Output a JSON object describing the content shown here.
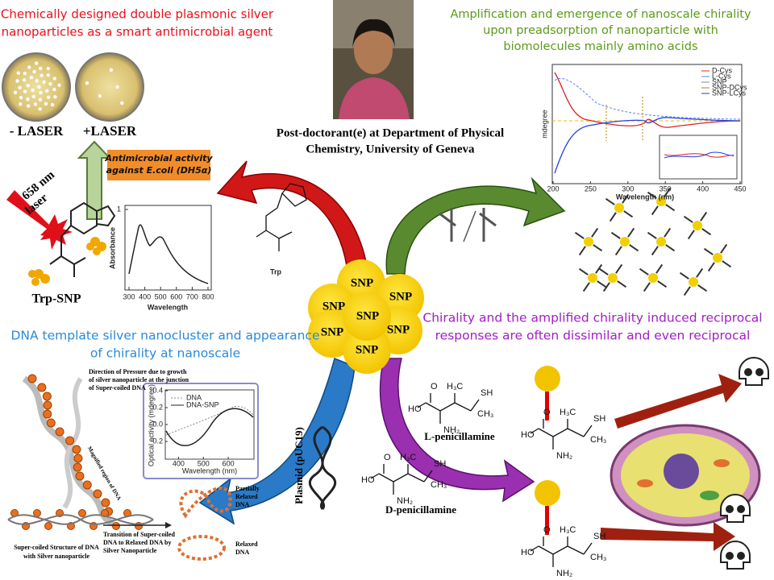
{
  "photo_caption": [
    "Post-doctorant(e) at Department of Physical",
    "Chemistry, University of Geneva"
  ],
  "antimicrobial": {
    "title": [
      "Chemically designed double plasmonic silver",
      "nanoparticles as a smart antimicrobial agent"
    ],
    "dishes": [
      "- LASER",
      "+LASER"
    ],
    "activity": [
      "Antimicrobial activity",
      "against E.coli (DH5α)"
    ],
    "laser": [
      "658 nm",
      "laser"
    ],
    "compound": "Trp-SNP",
    "plot": {
      "ylabel": "Absorbance",
      "xlabel": "Wavelength",
      "xticks": [
        300,
        400,
        500,
        600,
        700,
        800
      ],
      "yticks": [
        1
      ]
    }
  },
  "tryptophan": "Trp",
  "chirality": {
    "title": [
      "Amplification and emergence of nanoscale chirality",
      "upon preadsorption of nanoparticle with",
      "biomolecules mainly amino acids"
    ],
    "plot": {
      "ylabel": "mdegree",
      "xlabel": "Wavelength (nm)",
      "xticks": [
        200,
        250,
        300,
        350,
        400,
        450
      ],
      "legend": [
        "D-Cys",
        "L-Cys",
        "SNP",
        "SNP-DCys",
        "SNP-LCys"
      ]
    }
  },
  "core": {
    "labels": [
      "SNP",
      "SNP",
      "SNP",
      "SNP",
      "SNP",
      "SNP",
      "SNP"
    ]
  },
  "reciprocal": {
    "title": [
      "Chirality and the amplified chirality induced reciprocal",
      "responses are often dissimilar and even reciprocal"
    ],
    "l_name": "L-penicillamine",
    "d_name": "D-penicillamine",
    "molecule_labels": [
      "O",
      "HO",
      "NH₂",
      "H₃C",
      "CH₃",
      "SH"
    ]
  },
  "dna": {
    "title": [
      "DNA template silver nanocluster and appearance",
      "of chirality at nanoscale"
    ],
    "pressure_note": [
      "Direction of Pressure due to growth",
      "of silver nanoparticle at the junction",
      "of Super-coiled DNA"
    ],
    "magnified": "Magnified region of DNA",
    "supercoiled": [
      "Super-coiled Structure of DNA",
      "with Silver nanoparticle"
    ],
    "transition": [
      "Transition of Super-coiled",
      "DNA to Relaxed DNA by",
      "Silver Nanoparticle"
    ],
    "partially": [
      "Partially",
      "Relaxed",
      "DNA"
    ],
    "relaxed": [
      "Relaxed",
      "DNA"
    ],
    "plasmid": "Plasmid (pUC19)",
    "plot": {
      "ylabel": "Optical activity (mdegree)",
      "xlabel": "Wavelength (nm)",
      "xticks": [
        400,
        500,
        600
      ],
      "yticks": [
        0.4,
        0.2,
        {
          "value": 0,
          "label": "0.0"
        },
        -0.2
      ],
      "legend": [
        "DNA",
        "DNA-SNP"
      ]
    }
  }
}
